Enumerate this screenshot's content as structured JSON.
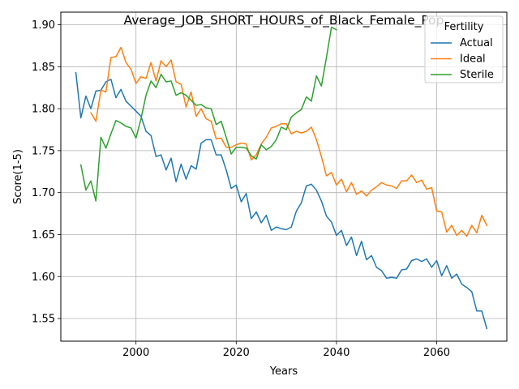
{
  "chart_data": {
    "type": "line",
    "title": "Average_JOB_SHORT_HOURS_of_Black_Female_Pop",
    "xlabel": "Years",
    "ylabel": "Score(1-5)",
    "xlim": [
      1985,
      2074
    ],
    "ylim": [
      1.523,
      1.915
    ],
    "x_ticks": [
      2000,
      2020,
      2040,
      2060
    ],
    "y_ticks": [
      1.55,
      1.6,
      1.65,
      1.7,
      1.75,
      1.8,
      1.85,
      1.9
    ],
    "x_tick_labels": [
      "2000",
      "2020",
      "2040",
      "2060"
    ],
    "y_tick_labels": [
      "1.55",
      "1.60",
      "1.65",
      "1.70",
      "1.75",
      "1.80",
      "1.85",
      "1.90"
    ],
    "grid": true,
    "legend": {
      "title": "Fertility",
      "placement": "top-right"
    },
    "series": [
      {
        "name": "Actual",
        "color": "#1f77b4",
        "x": [
          1988,
          1989,
          1990,
          1991,
          1992,
          1993,
          1994,
          1995,
          1996,
          1997,
          1998,
          1999,
          2000,
          2001,
          2002,
          2003,
          2004,
          2005,
          2006,
          2007,
          2008,
          2009,
          2010,
          2011,
          2012,
          2013,
          2014,
          2015,
          2016,
          2017,
          2018,
          2019,
          2020,
          2021,
          2022,
          2023,
          2024,
          2025,
          2026,
          2027,
          2028,
          2029,
          2030,
          2031,
          2032,
          2033,
          2034,
          2035,
          2036,
          2037,
          2038,
          2039,
          2040,
          2041,
          2042,
          2043,
          2044,
          2045,
          2046,
          2047,
          2048,
          2049,
          2050,
          2051,
          2052,
          2053,
          2054,
          2055,
          2056,
          2057,
          2058,
          2059,
          2060,
          2061,
          2062,
          2063,
          2064,
          2065,
          2066,
          2067,
          2068,
          2069,
          2070
        ],
        "values": [
          1.843,
          1.789,
          1.815,
          1.8,
          1.821,
          1.822,
          1.832,
          1.835,
          1.813,
          1.823,
          1.809,
          1.803,
          1.797,
          1.791,
          1.773,
          1.768,
          1.743,
          1.745,
          1.727,
          1.741,
          1.713,
          1.734,
          1.716,
          1.732,
          1.728,
          1.759,
          1.763,
          1.763,
          1.745,
          1.745,
          1.727,
          1.705,
          1.709,
          1.689,
          1.699,
          1.669,
          1.677,
          1.664,
          1.673,
          1.655,
          1.659,
          1.657,
          1.656,
          1.659,
          1.678,
          1.688,
          1.708,
          1.71,
          1.703,
          1.69,
          1.672,
          1.665,
          1.649,
          1.655,
          1.637,
          1.647,
          1.625,
          1.642,
          1.62,
          1.625,
          1.611,
          1.607,
          1.598,
          1.599,
          1.598,
          1.608,
          1.609,
          1.619,
          1.621,
          1.618,
          1.621,
          1.611,
          1.619,
          1.601,
          1.613,
          1.598,
          1.603,
          1.591,
          1.587,
          1.582,
          1.559,
          1.559,
          1.538
        ]
      },
      {
        "name": "Ideal",
        "color": "#ff7f0e",
        "x": [
          1991,
          1992,
          1993,
          1994,
          1995,
          1996,
          1997,
          1998,
          1999,
          2000,
          2001,
          2002,
          2003,
          2004,
          2005,
          2006,
          2007,
          2008,
          2009,
          2010,
          2011,
          2012,
          2013,
          2014,
          2015,
          2016,
          2017,
          2018,
          2019,
          2020,
          2021,
          2022,
          2023,
          2024,
          2025,
          2026,
          2027,
          2028,
          2029,
          2030,
          2031,
          2032,
          2033,
          2034,
          2035,
          2036,
          2037,
          2038,
          2039,
          2040,
          2041,
          2042,
          2043,
          2044,
          2045,
          2046,
          2047,
          2048,
          2049,
          2050,
          2051,
          2052,
          2053,
          2054,
          2055,
          2056,
          2057,
          2058,
          2059,
          2060,
          2061,
          2062,
          2063,
          2064,
          2065,
          2066,
          2067,
          2068,
          2069,
          2070
        ],
        "values": [
          1.795,
          1.785,
          1.822,
          1.82,
          1.861,
          1.862,
          1.873,
          1.855,
          1.847,
          1.83,
          1.838,
          1.836,
          1.855,
          1.833,
          1.857,
          1.85,
          1.858,
          1.832,
          1.829,
          1.802,
          1.82,
          1.791,
          1.8,
          1.788,
          1.785,
          1.764,
          1.765,
          1.754,
          1.754,
          1.757,
          1.759,
          1.758,
          1.739,
          1.745,
          1.758,
          1.766,
          1.777,
          1.779,
          1.782,
          1.782,
          1.77,
          1.773,
          1.771,
          1.773,
          1.778,
          1.763,
          1.743,
          1.72,
          1.724,
          1.709,
          1.716,
          1.701,
          1.712,
          1.698,
          1.702,
          1.696,
          1.703,
          1.707,
          1.712,
          1.709,
          1.708,
          1.705,
          1.714,
          1.714,
          1.721,
          1.712,
          1.715,
          1.704,
          1.706,
          1.678,
          1.677,
          1.653,
          1.661,
          1.649,
          1.655,
          1.648,
          1.661,
          1.652,
          1.673,
          1.661
        ]
      },
      {
        "name": "Sterile",
        "color": "#2ca02c",
        "x": [
          1989,
          1990,
          1991,
          1992,
          1993,
          1994,
          1995,
          1996,
          1997,
          1998,
          1999,
          2000,
          2001,
          2002,
          2003,
          2004,
          2005,
          2006,
          2007,
          2008,
          2009,
          2010,
          2011,
          2012,
          2013,
          2014,
          2015,
          2016,
          2017,
          2018,
          2019,
          2020,
          2021,
          2022,
          2023,
          2024,
          2025,
          2026,
          2027,
          2028,
          2029,
          2030,
          2031,
          2032,
          2033,
          2034,
          2035,
          2036,
          2037,
          2038,
          2039,
          2040
        ],
        "values": [
          1.733,
          1.703,
          1.714,
          1.69,
          1.766,
          1.753,
          1.77,
          1.786,
          1.783,
          1.779,
          1.777,
          1.765,
          1.788,
          1.816,
          1.833,
          1.825,
          1.841,
          1.832,
          1.833,
          1.816,
          1.819,
          1.816,
          1.81,
          1.804,
          1.805,
          1.801,
          1.8,
          1.781,
          1.785,
          1.766,
          1.746,
          1.754,
          1.754,
          1.753,
          1.744,
          1.74,
          1.757,
          1.751,
          1.755,
          1.763,
          1.778,
          1.775,
          1.79,
          1.795,
          1.799,
          1.814,
          1.809,
          1.839,
          1.827,
          1.861,
          1.897,
          1.894
        ]
      }
    ]
  }
}
